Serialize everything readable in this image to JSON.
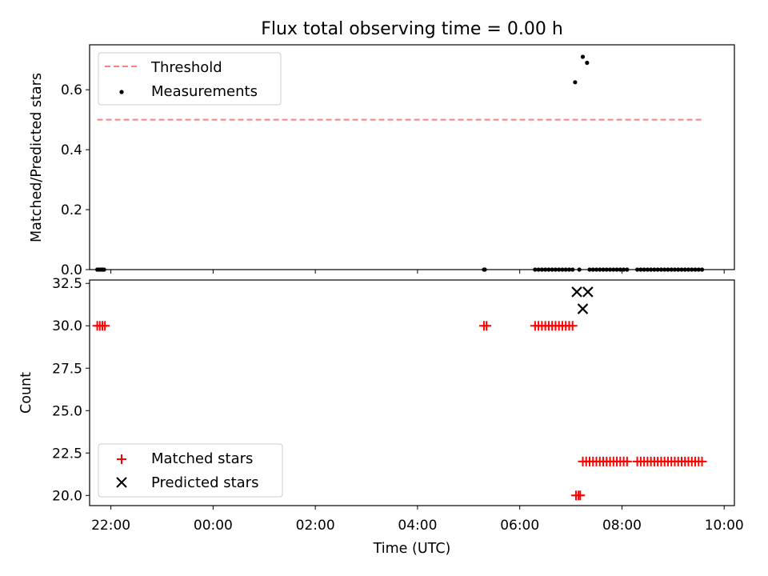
{
  "chart_data": [
    {
      "type": "scatter",
      "title": "Flux total observing time = 0.00 h",
      "ylabel": "Matched/Predicted stars",
      "xlim": [
        "21:35",
        "10:12"
      ],
      "ylim": [
        0,
        0.75
      ],
      "yticks": [
        0.0,
        0.2,
        0.4,
        0.6
      ],
      "ytick_labels": [
        "0.0",
        "0.2",
        "0.4",
        "0.6"
      ],
      "legend": {
        "placement": "upper left",
        "entries": [
          "Threshold",
          "Measurements"
        ]
      },
      "grid": false,
      "threshold": {
        "name": "Threshold",
        "value": 0.5,
        "x_range": [
          "21:44",
          "09:36"
        ],
        "color": "#ff7f7f",
        "style": "dashed"
      },
      "series": [
        {
          "name": "Measurements",
          "color": "#000000",
          "marker": "dot",
          "points": [
            [
              "21:44",
              0
            ],
            [
              "21:46",
              0
            ],
            [
              "21:48",
              0
            ],
            [
              "21:50",
              0
            ],
            [
              "21:52",
              0
            ],
            [
              "05:18",
              0
            ],
            [
              "05:19",
              0
            ],
            [
              "06:18",
              0
            ],
            [
              "06:22",
              0
            ],
            [
              "06:26",
              0
            ],
            [
              "06:30",
              0
            ],
            [
              "06:34",
              0
            ],
            [
              "06:38",
              0
            ],
            [
              "06:42",
              0
            ],
            [
              "06:46",
              0
            ],
            [
              "06:50",
              0
            ],
            [
              "06:54",
              0
            ],
            [
              "06:58",
              0
            ],
            [
              "07:02",
              0
            ],
            [
              "07:05",
              0.625
            ],
            [
              "07:14",
              0.71
            ],
            [
              "07:19",
              0.69
            ],
            [
              "07:10",
              0
            ],
            [
              "07:22",
              0
            ],
            [
              "07:26",
              0
            ],
            [
              "07:30",
              0
            ],
            [
              "07:34",
              0
            ],
            [
              "07:38",
              0
            ],
            [
              "07:42",
              0
            ],
            [
              "07:46",
              0
            ],
            [
              "07:50",
              0
            ],
            [
              "07:54",
              0
            ],
            [
              "07:58",
              0
            ],
            [
              "08:02",
              0
            ],
            [
              "08:06",
              0
            ],
            [
              "08:18",
              0
            ],
            [
              "08:22",
              0
            ],
            [
              "08:26",
              0
            ],
            [
              "08:30",
              0
            ],
            [
              "08:34",
              0
            ],
            [
              "08:38",
              0
            ],
            [
              "08:42",
              0
            ],
            [
              "08:46",
              0
            ],
            [
              "08:50",
              0
            ],
            [
              "08:54",
              0
            ],
            [
              "08:58",
              0
            ],
            [
              "09:02",
              0
            ],
            [
              "09:06",
              0
            ],
            [
              "09:10",
              0
            ],
            [
              "09:14",
              0
            ],
            [
              "09:18",
              0
            ],
            [
              "09:22",
              0
            ],
            [
              "09:26",
              0
            ],
            [
              "09:30",
              0
            ],
            [
              "09:34",
              0
            ]
          ]
        }
      ]
    },
    {
      "type": "scatter",
      "xlabel": "Time (UTC)",
      "ylabel": "Count",
      "xlim": [
        "21:35",
        "10:12"
      ],
      "ylim": [
        19.4,
        32.7
      ],
      "xticks": [
        "22:00",
        "00:00",
        "02:00",
        "04:00",
        "06:00",
        "08:00",
        "10:00"
      ],
      "yticks": [
        20.0,
        22.5,
        25.0,
        27.5,
        30.0,
        32.5
      ],
      "ytick_labels": [
        "20.0",
        "22.5",
        "25.0",
        "27.5",
        "30.0",
        "32.5"
      ],
      "legend": {
        "placement": "lower left",
        "entries": [
          "Matched stars",
          "Predicted stars"
        ]
      },
      "grid": false,
      "series": [
        {
          "name": "Matched stars",
          "color": "#ff0000",
          "marker": "plus",
          "points": [
            [
              "21:44",
              30
            ],
            [
              "21:47",
              30
            ],
            [
              "21:50",
              30
            ],
            [
              "21:53",
              30
            ],
            [
              "05:18",
              30
            ],
            [
              "05:21",
              30
            ],
            [
              "06:18",
              30
            ],
            [
              "06:22",
              30
            ],
            [
              "06:26",
              30
            ],
            [
              "06:30",
              30
            ],
            [
              "06:34",
              30
            ],
            [
              "06:38",
              30
            ],
            [
              "06:42",
              30
            ],
            [
              "06:46",
              30
            ],
            [
              "06:50",
              30
            ],
            [
              "06:54",
              30
            ],
            [
              "06:58",
              30
            ],
            [
              "07:02",
              30
            ],
            [
              "07:06",
              20
            ],
            [
              "07:09",
              20
            ],
            [
              "07:11",
              20
            ],
            [
              "07:14",
              22
            ],
            [
              "07:18",
              22
            ],
            [
              "07:22",
              22
            ],
            [
              "07:26",
              22
            ],
            [
              "07:30",
              22
            ],
            [
              "07:34",
              22
            ],
            [
              "07:38",
              22
            ],
            [
              "07:42",
              22
            ],
            [
              "07:46",
              22
            ],
            [
              "07:50",
              22
            ],
            [
              "07:54",
              22
            ],
            [
              "07:58",
              22
            ],
            [
              "08:02",
              22
            ],
            [
              "08:06",
              22
            ],
            [
              "08:18",
              22
            ],
            [
              "08:22",
              22
            ],
            [
              "08:26",
              22
            ],
            [
              "08:30",
              22
            ],
            [
              "08:34",
              22
            ],
            [
              "08:38",
              22
            ],
            [
              "08:42",
              22
            ],
            [
              "08:46",
              22
            ],
            [
              "08:50",
              22
            ],
            [
              "08:54",
              22
            ],
            [
              "08:58",
              22
            ],
            [
              "09:02",
              22
            ],
            [
              "09:06",
              22
            ],
            [
              "09:10",
              22
            ],
            [
              "09:14",
              22
            ],
            [
              "09:18",
              22
            ],
            [
              "09:22",
              22
            ],
            [
              "09:26",
              22
            ],
            [
              "09:30",
              22
            ],
            [
              "09:34",
              22
            ]
          ]
        },
        {
          "name": "Predicted stars",
          "color": "#000000",
          "marker": "x",
          "points": [
            [
              "07:07",
              32
            ],
            [
              "07:14",
              31
            ],
            [
              "07:20",
              32
            ]
          ]
        }
      ]
    }
  ]
}
